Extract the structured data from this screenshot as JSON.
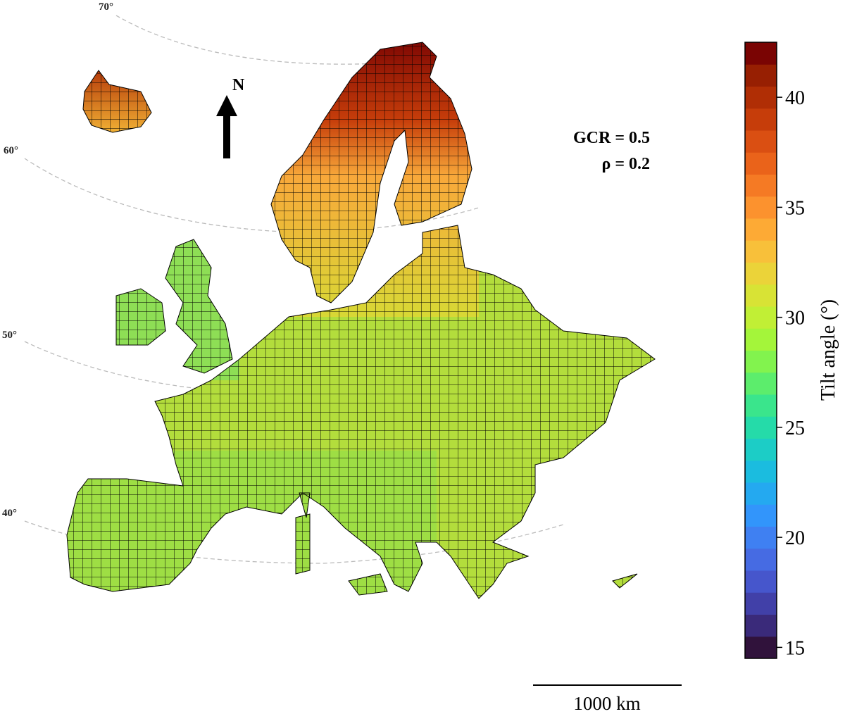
{
  "map": {
    "latitude_labels": [
      "70°",
      "60°",
      "50°",
      "40°"
    ],
    "north_label": "N",
    "annotations": [
      "GCR = 0.5",
      "ρ = 0.2"
    ],
    "scale_bar_label": "1000 km"
  },
  "colorbar": {
    "label": "Tilt angle (°)",
    "lim": [
      14.5,
      42.5
    ],
    "ticks": [
      15,
      20,
      25,
      30,
      35,
      40
    ],
    "colors": [
      "#30123b",
      "#3a2a7a",
      "#4140a8",
      "#4656cc",
      "#466be3",
      "#3f80f2",
      "#3295fb",
      "#24a9f0",
      "#1bbcdf",
      "#1ccdc6",
      "#25dba9",
      "#3ae58c",
      "#5ced6c",
      "#82f34e",
      "#a4f53a",
      "#c1ef35",
      "#d8e335",
      "#ebd339",
      "#f8c03a",
      "#fdaa35",
      "#fc922e",
      "#f57a24",
      "#ea631a",
      "#da4f12",
      "#c63d0a",
      "#b02e05",
      "#971f02",
      "#7a0403"
    ]
  }
}
